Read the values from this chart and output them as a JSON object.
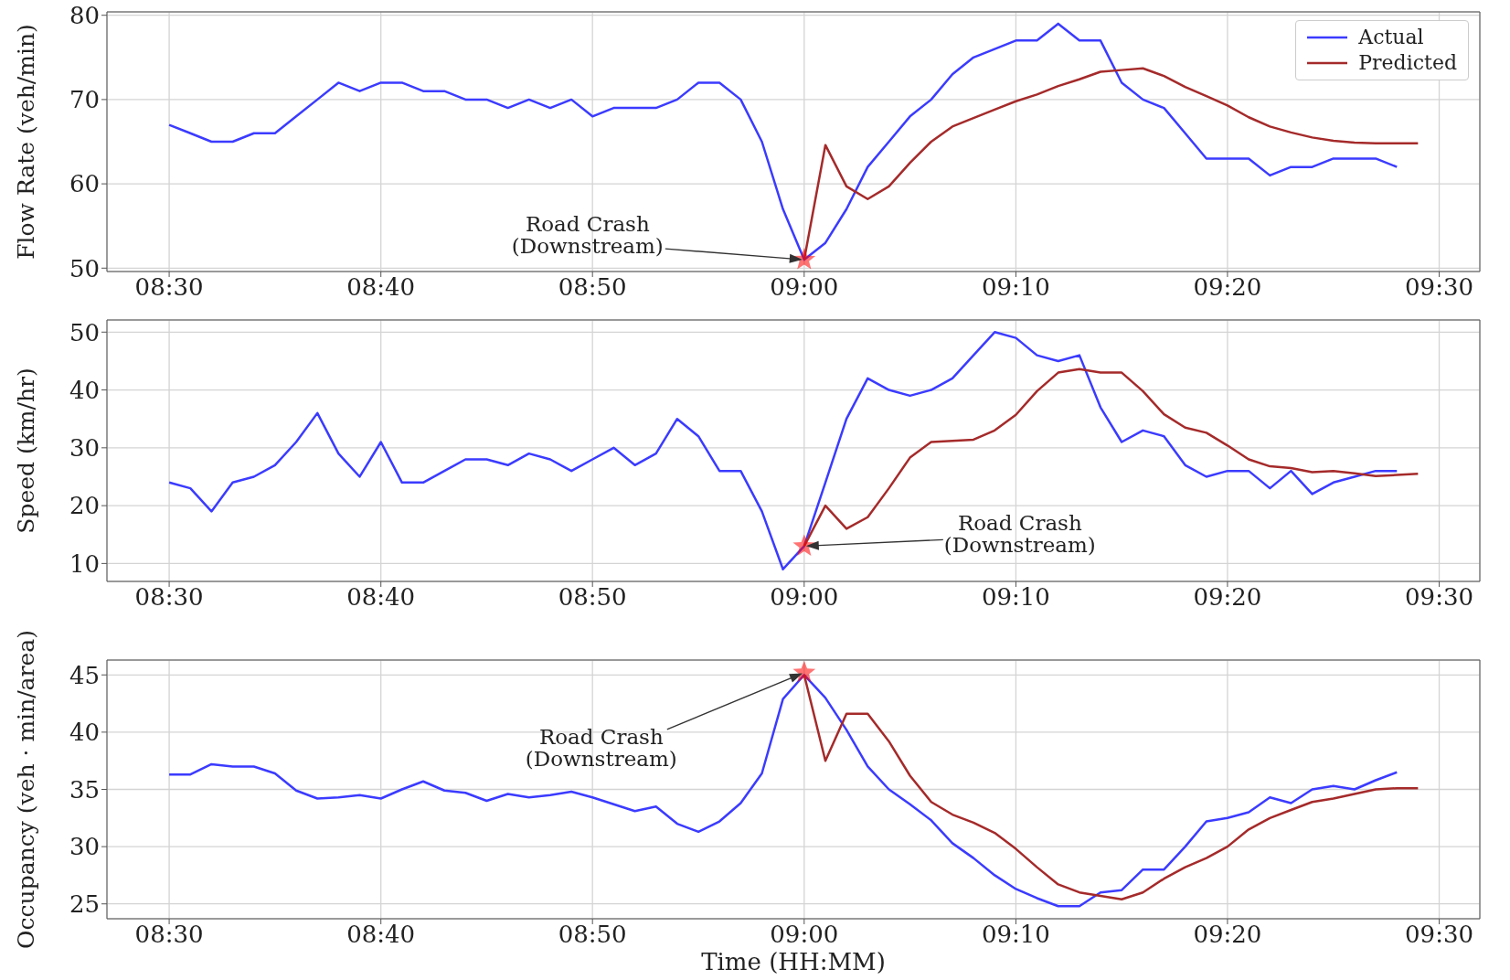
{
  "chart_data": [
    {
      "type": "line",
      "ylabel": "Flow Rate (veh/min)",
      "x": [
        8.5,
        8.5167,
        8.5333,
        8.55,
        8.5667,
        8.5833,
        8.6,
        8.6167,
        8.6333,
        8.65,
        8.6667,
        8.6833,
        8.7,
        8.7167,
        8.7333,
        8.75,
        8.7667,
        8.7833,
        8.8,
        8.8167,
        8.8333,
        8.85,
        8.8667,
        8.8833,
        8.9,
        8.9167,
        8.9333,
        8.95,
        8.9667,
        8.9833,
        9,
        9.0167,
        9.0333,
        9.05,
        9.0667,
        9.0833,
        9.1,
        9.1167,
        9.1333,
        9.15,
        9.1667,
        9.1833,
        9.2,
        9.2167,
        9.2333,
        9.25,
        9.2667,
        9.2833,
        9.3,
        9.3167,
        9.3333,
        9.35,
        9.3667,
        9.3833,
        9.4,
        9.4167,
        9.4333,
        9.45,
        9.4667
      ],
      "series": [
        {
          "name": "Actual",
          "color": "#3b3bff",
          "values": [
            67,
            66,
            65,
            65,
            66,
            66,
            68,
            70,
            72,
            71,
            72,
            72,
            71,
            71,
            70,
            70,
            69,
            70,
            69,
            70,
            68,
            69,
            69,
            69,
            70,
            72,
            72,
            70,
            65,
            57,
            51,
            53,
            57,
            62,
            65,
            68,
            70,
            73,
            75,
            76,
            77,
            77,
            79,
            77,
            77,
            72,
            70,
            69,
            66,
            63,
            63,
            63,
            61,
            62,
            62,
            63,
            63,
            63,
            62
          ]
        },
        {
          "name": "Predicted",
          "color": "#a52a2a",
          "x": [
            9,
            9.0167,
            9.0333,
            9.05,
            9.0667,
            9.0833,
            9.1,
            9.1167,
            9.1333,
            9.15,
            9.1667,
            9.1833,
            9.2,
            9.2167,
            9.2333,
            9.25,
            9.2667,
            9.2833,
            9.3,
            9.3167,
            9.3333,
            9.35,
            9.3667,
            9.3833,
            9.4,
            9.4167,
            9.4333,
            9.45,
            9.4667,
            9.4833
          ],
          "values": [
            51,
            64.6,
            59.7,
            58.2,
            59.7,
            62.5,
            65,
            66.8,
            67.8,
            68.8,
            69.8,
            70.6,
            71.6,
            72.4,
            73.3,
            73.5,
            73.7,
            72.8,
            71.5,
            70.4,
            69.3,
            67.9,
            66.8,
            66.1,
            65.5,
            65.1,
            64.9,
            64.8,
            64.8,
            64.8
          ]
        },
        {
          "type": "scatter",
          "color": "#ff0000",
          "marker": "star",
          "x": [
            9
          ],
          "values": [
            51
          ]
        }
      ],
      "annotations": [
        "Road Crash\n(Downstream)"
      ],
      "xlim": [
        8.451,
        9.532
      ],
      "xticks": [
        {
          "value": 8.5,
          "label": "08:30"
        },
        {
          "value": 8.6667,
          "label": "08:40"
        },
        {
          "value": 8.8333,
          "label": "08:50"
        },
        {
          "value": 9,
          "label": "09:00"
        },
        {
          "value": 9.1667,
          "label": "09:10"
        },
        {
          "value": 9.3333,
          "label": "09:20"
        },
        {
          "value": 9.5,
          "label": "09:30"
        }
      ],
      "ylim": [
        49.6,
        80.4
      ],
      "yticks": [
        50,
        60,
        70,
        80
      ],
      "grid": true,
      "legend": "top right"
    },
    {
      "type": "line",
      "ylabel": "Speed (km/hr)",
      "x": [
        8.5,
        8.5167,
        8.5333,
        8.55,
        8.5667,
        8.5833,
        8.6,
        8.6167,
        8.6333,
        8.65,
        8.6667,
        8.6833,
        8.7,
        8.7167,
        8.7333,
        8.75,
        8.7667,
        8.7833,
        8.8,
        8.8167,
        8.8333,
        8.85,
        8.8667,
        8.8833,
        8.9,
        8.9167,
        8.9333,
        8.95,
        8.9667,
        8.9833,
        9,
        9.0167,
        9.0333,
        9.05,
        9.0667,
        9.0833,
        9.1,
        9.1167,
        9.1333,
        9.15,
        9.1667,
        9.1833,
        9.2,
        9.2167,
        9.2333,
        9.25,
        9.2667,
        9.2833,
        9.3,
        9.3167,
        9.3333,
        9.35,
        9.3667,
        9.3833,
        9.4,
        9.4167,
        9.4333,
        9.45,
        9.4667
      ],
      "series": [
        {
          "color": "#3b3bff",
          "values": [
            24,
            23,
            19,
            24,
            25,
            27,
            31,
            36,
            29,
            25,
            31,
            24,
            24,
            26,
            28,
            28,
            27,
            29,
            28,
            26,
            28,
            30,
            27,
            29,
            35,
            32,
            26,
            26,
            19,
            9,
            13,
            24,
            35,
            42,
            40,
            39,
            40,
            42,
            46,
            50,
            49,
            46,
            45,
            46,
            37,
            31,
            33,
            32,
            27,
            25,
            26,
            26,
            23,
            26,
            22,
            24,
            25,
            26,
            26
          ]
        },
        {
          "color": "#a52a2a",
          "x": [
            9,
            9.0167,
            9.0333,
            9.05,
            9.0667,
            9.0833,
            9.1,
            9.1167,
            9.1333,
            9.15,
            9.1667,
            9.1833,
            9.2,
            9.2167,
            9.2333,
            9.25,
            9.2667,
            9.2833,
            9.3,
            9.3167,
            9.3333,
            9.35,
            9.3667,
            9.3833,
            9.4,
            9.4167,
            9.4333,
            9.45,
            9.4667,
            9.4833
          ],
          "values": [
            13,
            20,
            16,
            18,
            23,
            28.3,
            31,
            31.2,
            31.4,
            33,
            35.7,
            39.8,
            43,
            43.6,
            43,
            43,
            39.8,
            35.8,
            33.5,
            32.6,
            30.4,
            28,
            26.8,
            26.5,
            25.8,
            26,
            25.6,
            25.1,
            25.3,
            25.5
          ]
        },
        {
          "type": "scatter",
          "color": "#ff0000",
          "marker": "star",
          "x": [
            9
          ],
          "values": [
            13
          ]
        }
      ],
      "annotations": [
        "Road Crash\n(Downstream)"
      ],
      "xlim": [
        8.451,
        9.532
      ],
      "xticks": [
        {
          "value": 8.5,
          "label": "08:30"
        },
        {
          "value": 8.6667,
          "label": "08:40"
        },
        {
          "value": 8.8333,
          "label": "08:50"
        },
        {
          "value": 9,
          "label": "09:00"
        },
        {
          "value": 9.1667,
          "label": "09:10"
        },
        {
          "value": 9.3333,
          "label": "09:20"
        },
        {
          "value": 9.5,
          "label": "09:30"
        }
      ],
      "ylim": [
        6.9,
        52.1
      ],
      "yticks": [
        10,
        20,
        30,
        40,
        50
      ],
      "grid": true
    },
    {
      "type": "line",
      "xlabel": "Time (HH:MM)",
      "ylabel": "Occupancy (veh · min/area)",
      "x": [
        8.5,
        8.5167,
        8.5333,
        8.55,
        8.5667,
        8.5833,
        8.6,
        8.6167,
        8.6333,
        8.65,
        8.6667,
        8.6833,
        8.7,
        8.7167,
        8.7333,
        8.75,
        8.7667,
        8.7833,
        8.8,
        8.8167,
        8.8333,
        8.85,
        8.8667,
        8.8833,
        8.9,
        8.9167,
        8.9333,
        8.95,
        8.9667,
        8.9833,
        9,
        9.0167,
        9.0333,
        9.05,
        9.0667,
        9.0833,
        9.1,
        9.1167,
        9.1333,
        9.15,
        9.1667,
        9.1833,
        9.2,
        9.2167,
        9.2333,
        9.25,
        9.2667,
        9.2833,
        9.3,
        9.3167,
        9.3333,
        9.35,
        9.3667,
        9.3833,
        9.4,
        9.4167,
        9.4333,
        9.45,
        9.4667
      ],
      "series": [
        {
          "color": "#3b3bff",
          "values": [
            36.3,
            36.3,
            37.2,
            37,
            37,
            36.4,
            34.9,
            34.2,
            34.3,
            34.5,
            34.2,
            35,
            35.7,
            34.9,
            34.7,
            34,
            34.6,
            34.3,
            34.5,
            34.8,
            34.3,
            33.7,
            33.1,
            33.5,
            32,
            31.3,
            32.2,
            33.8,
            36.4,
            42.9,
            45,
            43,
            40.2,
            37,
            35,
            33.7,
            32.3,
            30.3,
            29,
            27.5,
            26.3,
            25.5,
            24.8,
            24.8,
            26,
            26.2,
            28,
            28,
            30,
            32.2,
            32.5,
            33,
            34.3,
            33.8,
            35,
            35.3,
            35,
            35.8,
            36.5
          ]
        },
        {
          "color": "#a52a2a",
          "x": [
            9,
            9.0167,
            9.0333,
            9.05,
            9.0667,
            9.0833,
            9.1,
            9.1167,
            9.1333,
            9.15,
            9.1667,
            9.1833,
            9.2,
            9.2167,
            9.2333,
            9.25,
            9.2667,
            9.2833,
            9.3,
            9.3167,
            9.3333,
            9.35,
            9.3667,
            9.3833,
            9.4,
            9.4167,
            9.4333,
            9.45,
            9.4667,
            9.4833
          ],
          "values": [
            45,
            37.5,
            41.6,
            41.6,
            39.2,
            36.2,
            33.9,
            32.8,
            32.1,
            31.2,
            29.8,
            28.2,
            26.7,
            26,
            25.7,
            25.4,
            26,
            27.2,
            28.2,
            29,
            30,
            31.5,
            32.5,
            33.2,
            33.9,
            34.2,
            34.6,
            35,
            35.1,
            35.1
          ]
        },
        {
          "type": "scatter",
          "color": "#ff0000",
          "marker": "star",
          "x": [
            9
          ],
          "values": [
            45.2
          ]
        }
      ],
      "annotations": [
        "Road Crash\n(Downstream)"
      ],
      "xlim": [
        8.451,
        9.532
      ],
      "xticks": [
        {
          "value": 8.5,
          "label": "08:30"
        },
        {
          "value": 8.6667,
          "label": "08:40"
        },
        {
          "value": 8.8333,
          "label": "08:50"
        },
        {
          "value": 9,
          "label": "09:00"
        },
        {
          "value": 9.1667,
          "label": "09:10"
        },
        {
          "value": 9.3333,
          "label": "09:20"
        },
        {
          "value": 9.5,
          "label": "09:30"
        }
      ],
      "ylim": [
        23.7,
        46.3
      ],
      "yticks": [
        25,
        30,
        35,
        40,
        45
      ],
      "grid": true
    }
  ]
}
